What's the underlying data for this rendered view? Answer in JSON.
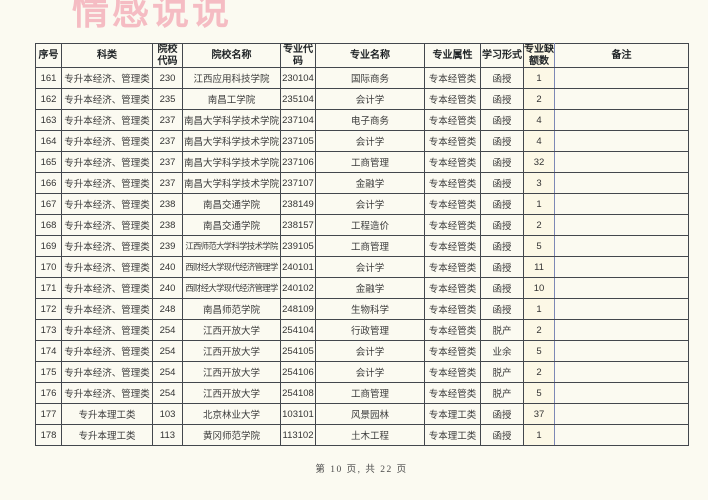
{
  "watermark": {
    "text": "情感说说",
    "color": "#f5bcc3"
  },
  "table": {
    "headers": [
      "序号",
      "科类",
      "院校代码",
      "院校名称",
      "专业代码",
      "专业名称",
      "专业属性",
      "学习形式",
      "专业缺额数",
      "备注"
    ],
    "rows": [
      [
        "161",
        "专升本经济、管理类",
        "230",
        "江西应用科技学院",
        "230104",
        "国际商务",
        "专本经管类",
        "函授",
        "1",
        ""
      ],
      [
        "162",
        "专升本经济、管理类",
        "235",
        "南昌工学院",
        "235104",
        "会计学",
        "专本经管类",
        "函授",
        "2",
        ""
      ],
      [
        "163",
        "专升本经济、管理类",
        "237",
        "南昌大学科学技术学院",
        "237104",
        "电子商务",
        "专本经管类",
        "函授",
        "4",
        ""
      ],
      [
        "164",
        "专升本经济、管理类",
        "237",
        "南昌大学科学技术学院",
        "237105",
        "会计学",
        "专本经管类",
        "函授",
        "4",
        ""
      ],
      [
        "165",
        "专升本经济、管理类",
        "237",
        "南昌大学科学技术学院",
        "237106",
        "工商管理",
        "专本经管类",
        "函授",
        "32",
        ""
      ],
      [
        "166",
        "专升本经济、管理类",
        "237",
        "南昌大学科学技术学院",
        "237107",
        "金融学",
        "专本经管类",
        "函授",
        "3",
        ""
      ],
      [
        "167",
        "专升本经济、管理类",
        "238",
        "南昌交通学院",
        "238149",
        "会计学",
        "专本经管类",
        "函授",
        "1",
        ""
      ],
      [
        "168",
        "专升本经济、管理类",
        "238",
        "南昌交通学院",
        "238157",
        "工程造价",
        "专本经管类",
        "函授",
        "2",
        ""
      ],
      [
        "169",
        "专升本经济、管理类",
        "239",
        "江西师范大学科学技术学院",
        "239105",
        "工商管理",
        "专本经管类",
        "函授",
        "5",
        ""
      ],
      [
        "170",
        "专升本经济、管理类",
        "240",
        "西财经大学现代经济管理学",
        "240101",
        "会计学",
        "专本经管类",
        "函授",
        "11",
        ""
      ],
      [
        "171",
        "专升本经济、管理类",
        "240",
        "西财经大学现代经济管理学",
        "240102",
        "金融学",
        "专本经管类",
        "函授",
        "10",
        ""
      ],
      [
        "172",
        "专升本经济、管理类",
        "248",
        "南昌师范学院",
        "248109",
        "生物科学",
        "专本经管类",
        "函授",
        "1",
        ""
      ],
      [
        "173",
        "专升本经济、管理类",
        "254",
        "江西开放大学",
        "254104",
        "行政管理",
        "专本经管类",
        "脱产",
        "2",
        ""
      ],
      [
        "174",
        "专升本经济、管理类",
        "254",
        "江西开放大学",
        "254105",
        "会计学",
        "专本经管类",
        "业余",
        "5",
        ""
      ],
      [
        "175",
        "专升本经济、管理类",
        "254",
        "江西开放大学",
        "254106",
        "会计学",
        "专本经管类",
        "脱产",
        "2",
        ""
      ],
      [
        "176",
        "专升本经济、管理类",
        "254",
        "江西开放大学",
        "254108",
        "工商管理",
        "专本经管类",
        "脱产",
        "5",
        ""
      ],
      [
        "177",
        "专升本理工类",
        "103",
        "北京林业大学",
        "103101",
        "风景园林",
        "专本理工类",
        "函授",
        "37",
        ""
      ],
      [
        "178",
        "专升本理工类",
        "113",
        "黄冈师范学院",
        "113102",
        "土木工程",
        "专本理工类",
        "函授",
        "1",
        ""
      ]
    ]
  },
  "footer": {
    "text": "第 10 页, 共 22 页"
  },
  "colors": {
    "page_bg": "#fbfaf1",
    "border": "#43474d",
    "vacancy_col_bg": "#fcf8e6",
    "vacancy_border": "#5b6cab",
    "watermark": "#f5bcc3"
  }
}
